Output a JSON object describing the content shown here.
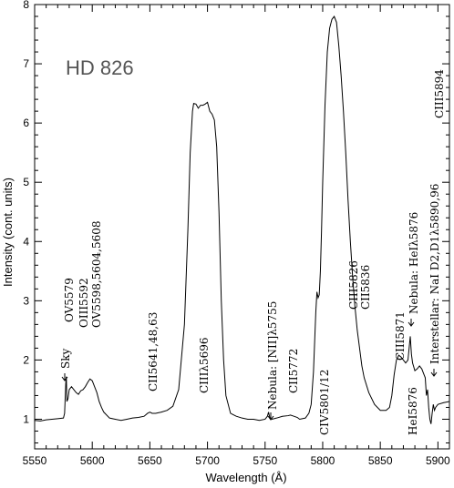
{
  "chart_data": {
    "type": "line",
    "title": "HD 826",
    "xlabel": "Wavelength (Å)",
    "ylabel": "Intensity (cont. units)",
    "xlim": [
      5550,
      5910
    ],
    "ylim": [
      0.5,
      8
    ],
    "x_ticks": [
      5550,
      5600,
      5650,
      5700,
      5750,
      5800,
      5850,
      5900
    ],
    "x_tick_labels": [
      "5550",
      "5600",
      "5650",
      "5700",
      "5750",
      "5800",
      "5850",
      "5900"
    ],
    "y_ticks": [
      1,
      2,
      3,
      4,
      5,
      6,
      7,
      8
    ],
    "y_tick_labels": [
      "1",
      "2",
      "3",
      "4",
      "5",
      "6",
      "7",
      "8"
    ],
    "grid": false,
    "series": [
      {
        "x": [
          5550,
          5555,
          5560,
          5565,
          5570,
          5575,
          5576,
          5577,
          5577.5,
          5578,
          5579,
          5580,
          5582,
          5584,
          5586,
          5588,
          5590,
          5592,
          5594,
          5596,
          5598,
          5600,
          5602,
          5604,
          5606,
          5608,
          5610,
          5615,
          5620,
          5625,
          5630,
          5635,
          5640,
          5645,
          5648,
          5650,
          5652,
          5655,
          5660,
          5665,
          5670,
          5675,
          5680,
          5683,
          5685,
          5687,
          5688,
          5690,
          5692,
          5694,
          5696,
          5698,
          5700,
          5702,
          5704,
          5706,
          5708,
          5710,
          5712,
          5714,
          5716,
          5720,
          5725,
          5730,
          5735,
          5740,
          5745,
          5750,
          5752,
          5753,
          5754,
          5756,
          5760,
          5765,
          5770,
          5772,
          5775,
          5778,
          5780,
          5785,
          5788,
          5790,
          5792,
          5794,
          5795,
          5796,
          5797,
          5798,
          5799,
          5800,
          5802,
          5804,
          5806,
          5808,
          5810,
          5812,
          5814,
          5816,
          5818,
          5820,
          5822,
          5824,
          5826,
          5828,
          5830,
          5832,
          5834,
          5836,
          5840,
          5845,
          5850,
          5855,
          5858,
          5860,
          5862,
          5864,
          5866,
          5868,
          5870,
          5872,
          5874,
          5875,
          5876,
          5877,
          5878,
          5880,
          5882,
          5884,
          5886,
          5888,
          5889,
          5890,
          5891,
          5892,
          5893,
          5894,
          5895,
          5896,
          5897,
          5898,
          5900,
          5905,
          5910
        ],
        "y": [
          0.98,
          0.97,
          0.99,
          1.0,
          1.01,
          1.02,
          1.1,
          1.6,
          1.72,
          1.3,
          1.35,
          1.5,
          1.55,
          1.5,
          1.45,
          1.42,
          1.48,
          1.5,
          1.55,
          1.62,
          1.68,
          1.65,
          1.55,
          1.45,
          1.3,
          1.2,
          1.12,
          1.02,
          1.0,
          0.98,
          1.0,
          1.02,
          1.03,
          1.05,
          1.1,
          1.12,
          1.1,
          1.1,
          1.12,
          1.15,
          1.22,
          1.5,
          2.6,
          4.2,
          5.5,
          6.2,
          6.33,
          6.32,
          6.25,
          6.3,
          6.3,
          6.32,
          6.35,
          6.2,
          6.15,
          6.05,
          5.6,
          4.5,
          3.0,
          2.0,
          1.4,
          1.1,
          1.05,
          1.02,
          1.0,
          1.0,
          0.98,
          1.0,
          1.05,
          1.12,
          1.03,
          1.0,
          1.02,
          1.05,
          1.06,
          1.07,
          1.05,
          1.03,
          1.0,
          1.02,
          1.1,
          1.25,
          1.8,
          2.8,
          3.15,
          3.05,
          3.1,
          3.5,
          4.2,
          5.0,
          6.3,
          7.2,
          7.6,
          7.75,
          7.8,
          7.7,
          7.3,
          6.8,
          6.2,
          5.5,
          4.7,
          4.0,
          3.4,
          2.9,
          2.5,
          2.2,
          1.9,
          1.7,
          1.45,
          1.25,
          1.15,
          1.15,
          1.2,
          1.4,
          1.75,
          2.0,
          2.08,
          2.05,
          2.0,
          1.95,
          2.0,
          2.2,
          2.4,
          2.1,
          1.95,
          1.82,
          1.85,
          1.9,
          1.85,
          1.75,
          1.7,
          1.4,
          1.5,
          1.2,
          1.0,
          0.92,
          1.1,
          1.25,
          1.15,
          1.2,
          1.25,
          1.28,
          1.3
        ]
      }
    ],
    "annotations": [
      {
        "text": "Sky",
        "x": 5577
      },
      {
        "text": "OV5579",
        "x": 5580
      },
      {
        "text": "OIII5592",
        "x": 5592
      },
      {
        "text": "OV5598,5604,5608",
        "x": 5603
      },
      {
        "text": "CII5641,48,63",
        "x": 5652
      },
      {
        "text": "CIIIλ5696",
        "x": 5698
      },
      {
        "text": "Nebula: [NII]λ5755",
        "x": 5755
      },
      {
        "text": "CII5772",
        "x": 5772
      },
      {
        "text": "CIV5801/12",
        "x": 5801
      },
      {
        "text": "CIII5826",
        "x": 5826
      },
      {
        "text": "CII5836",
        "x": 5836
      },
      {
        "text": "CIII5871",
        "x": 5871
      },
      {
        "text": "Nebula: HeIλ5876",
        "x": 5876
      },
      {
        "text": "HeI5876",
        "x": 5876
      },
      {
        "text": "Interstellar: NaI D2,D1λ5890,96",
        "x": 5893
      },
      {
        "text": "CIII5894",
        "x": 5894
      }
    ]
  }
}
